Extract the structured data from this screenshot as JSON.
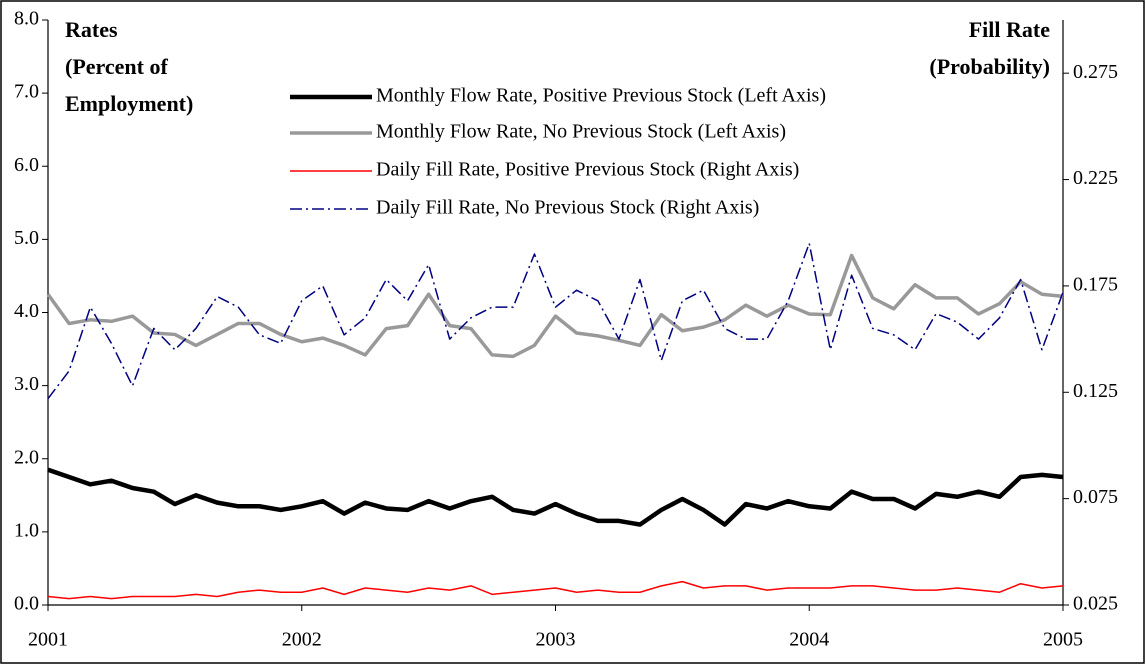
{
  "chart_data": {
    "type": "line",
    "left_axis_title": [
      "Rates",
      "(Percent of",
      "Employment)"
    ],
    "right_axis_title": [
      "Fill Rate",
      "(Probability)"
    ],
    "x": [
      2001,
      2001.083,
      2001.167,
      2001.25,
      2001.333,
      2001.417,
      2001.5,
      2001.583,
      2001.667,
      2001.75,
      2001.833,
      2001.917,
      2002,
      2002.083,
      2002.167,
      2002.25,
      2002.333,
      2002.417,
      2002.5,
      2002.583,
      2002.667,
      2002.75,
      2002.833,
      2002.917,
      2003,
      2003.083,
      2003.167,
      2003.25,
      2003.333,
      2003.417,
      2003.5,
      2003.583,
      2003.667,
      2003.75,
      2003.833,
      2003.917,
      2004,
      2004.083,
      2004.167,
      2004.25,
      2004.333,
      2004.417,
      2004.5,
      2004.583,
      2004.667,
      2004.75,
      2004.833,
      2004.917,
      2005
    ],
    "xlim": [
      2001,
      2005
    ],
    "xticks": [
      2001,
      2002,
      2003,
      2004,
      2005
    ],
    "ylim": [
      0,
      8
    ],
    "yticks": [
      {
        "value": 0,
        "label": "0.0"
      },
      {
        "value": 1,
        "label": "1.0"
      },
      {
        "value": 2,
        "label": "2.0"
      },
      {
        "value": 3,
        "label": "3.0"
      },
      {
        "value": 4,
        "label": "4.0"
      },
      {
        "value": 5,
        "label": "5.0"
      },
      {
        "value": 6,
        "label": "6.0"
      },
      {
        "value": 7,
        "label": "7.0"
      },
      {
        "value": 8,
        "label": "8.0"
      }
    ],
    "y2lim": [
      0.025,
      0.3
    ],
    "y2ticks": [
      0.025,
      0.075,
      0.125,
      0.175,
      0.225,
      0.275
    ],
    "series": [
      {
        "name": "Monthly Flow Rate, Positive Previous Stock (Left Axis)",
        "color": "#000000",
        "linewidth": 4.5,
        "linestyle": "solid",
        "axis": "y",
        "values": [
          1.85,
          1.75,
          1.65,
          1.7,
          1.6,
          1.55,
          1.38,
          1.5,
          1.4,
          1.35,
          1.35,
          1.3,
          1.35,
          1.42,
          1.25,
          1.4,
          1.32,
          1.3,
          1.42,
          1.32,
          1.42,
          1.48,
          1.3,
          1.25,
          1.38,
          1.25,
          1.15,
          1.15,
          1.1,
          1.3,
          1.45,
          1.3,
          1.1,
          1.38,
          1.32,
          1.42,
          1.35,
          1.32,
          1.55,
          1.45,
          1.45,
          1.32,
          1.52,
          1.48,
          1.55,
          1.48,
          1.75,
          1.78,
          1.75
        ]
      },
      {
        "name": "Monthly Flow Rate, No Previous Stock (Left Axis)",
        "color": "#999999",
        "linewidth": 3.5,
        "linestyle": "solid",
        "axis": "y",
        "values": [
          4.25,
          3.85,
          3.9,
          3.88,
          3.95,
          3.72,
          3.7,
          3.55,
          3.7,
          3.85,
          3.85,
          3.7,
          3.6,
          3.65,
          3.55,
          3.42,
          3.78,
          3.82,
          4.25,
          3.82,
          3.78,
          3.42,
          3.4,
          3.55,
          3.95,
          3.72,
          3.68,
          3.62,
          3.55,
          3.97,
          3.75,
          3.8,
          3.9,
          4.1,
          3.95,
          4.1,
          3.98,
          3.97,
          4.78,
          4.2,
          4.05,
          4.38,
          4.2,
          4.2,
          3.98,
          4.12,
          4.42,
          4.25,
          4.22
        ]
      },
      {
        "name": "Daily Fill Rate, Positive Previous Stock (Right Axis)",
        "color": "#ff0000",
        "linewidth": 1.5,
        "linestyle": "solid",
        "axis": "y2",
        "values": [
          0.029,
          0.028,
          0.029,
          0.028,
          0.029,
          0.029,
          0.029,
          0.03,
          0.029,
          0.031,
          0.032,
          0.031,
          0.031,
          0.033,
          0.03,
          0.033,
          0.032,
          0.031,
          0.033,
          0.032,
          0.034,
          0.03,
          0.031,
          0.032,
          0.033,
          0.031,
          0.032,
          0.031,
          0.031,
          0.034,
          0.036,
          0.033,
          0.034,
          0.034,
          0.032,
          0.033,
          0.033,
          0.033,
          0.034,
          0.034,
          0.033,
          0.032,
          0.032,
          0.033,
          0.032,
          0.031,
          0.035,
          0.033,
          0.034
        ]
      },
      {
        "name": "Daily Fill Rate, No Previous Stock (Right Axis)",
        "color": "#000080",
        "linewidth": 1.5,
        "linestyle": "dashdot",
        "axis": "y2",
        "values": [
          0.122,
          0.135,
          0.165,
          0.148,
          0.128,
          0.155,
          0.145,
          0.155,
          0.17,
          0.165,
          0.152,
          0.148,
          0.168,
          0.175,
          0.152,
          0.16,
          0.178,
          0.168,
          0.185,
          0.15,
          0.16,
          0.165,
          0.165,
          0.19,
          0.165,
          0.173,
          0.168,
          0.15,
          0.178,
          0.14,
          0.168,
          0.173,
          0.155,
          0.15,
          0.15,
          0.168,
          0.195,
          0.145,
          0.18,
          0.155,
          0.152,
          0.145,
          0.162,
          0.158,
          0.15,
          0.16,
          0.178,
          0.145,
          0.172
        ]
      }
    ]
  }
}
